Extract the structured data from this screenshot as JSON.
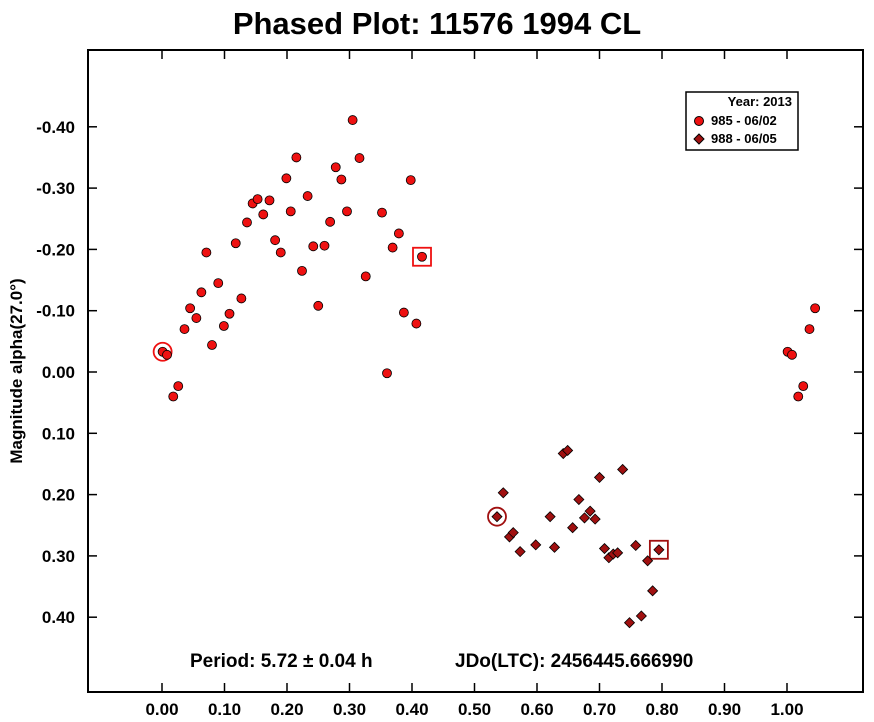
{
  "chart_data": {
    "type": "scatter",
    "title": "Phased Plot: 11576 1994 CL",
    "xlabel": "",
    "ylabel": "Magnitude alpha(27.0°)",
    "xlim": [
      -0.12,
      1.11
    ],
    "ylim": [
      0.52,
      -0.52
    ],
    "y_inverted": true,
    "grid": false,
    "legend_position": "top-right",
    "legend_title": "Year: 2013",
    "x_ticks": [
      0.0,
      0.1,
      0.2,
      0.3,
      0.4,
      0.5,
      0.6,
      0.7,
      0.8,
      0.9,
      1.0
    ],
    "x_tick_labels": [
      "0.00",
      "0.10",
      "0.20",
      "0.30",
      "0.40",
      "0.50",
      "0.60",
      "0.70",
      "0.80",
      "0.90",
      "1.00"
    ],
    "y_ticks": [
      -0.4,
      -0.3,
      -0.2,
      -0.1,
      0.0,
      0.1,
      0.2,
      0.3,
      0.4
    ],
    "y_tick_labels": [
      "-0.40",
      "-0.30",
      "-0.20",
      "-0.10",
      "0.00",
      "0.10",
      "0.20",
      "0.30",
      "0.40"
    ],
    "annotations": {
      "period": "Period: 5.72 ± 0.04 h",
      "jdo": "JDo(LTC): 2456445.666990"
    },
    "series": [
      {
        "name": "985 - 06/02",
        "marker": "circle",
        "color": "#ee1111",
        "start_marker": {
          "x": 0.001,
          "y": -0.033
        },
        "end_marker": {
          "x": 0.416,
          "y": -0.188
        },
        "points": [
          [
            0.001,
            -0.033
          ],
          [
            0.008,
            -0.028
          ],
          [
            0.018,
            0.04
          ],
          [
            0.026,
            0.023
          ],
          [
            0.036,
            -0.07
          ],
          [
            0.045,
            -0.104
          ],
          [
            0.055,
            -0.088
          ],
          [
            0.063,
            -0.13
          ],
          [
            0.071,
            -0.195
          ],
          [
            0.08,
            -0.044
          ],
          [
            0.09,
            -0.145
          ],
          [
            0.099,
            -0.075
          ],
          [
            0.108,
            -0.095
          ],
          [
            0.118,
            -0.21
          ],
          [
            0.127,
            -0.12
          ],
          [
            0.136,
            -0.244
          ],
          [
            0.145,
            -0.275
          ],
          [
            0.153,
            -0.282
          ],
          [
            0.162,
            -0.257
          ],
          [
            0.172,
            -0.28
          ],
          [
            0.181,
            -0.215
          ],
          [
            0.19,
            -0.195
          ],
          [
            0.199,
            -0.316
          ],
          [
            0.206,
            -0.262
          ],
          [
            0.215,
            -0.35
          ],
          [
            0.224,
            -0.165
          ],
          [
            0.233,
            -0.287
          ],
          [
            0.242,
            -0.205
          ],
          [
            0.25,
            -0.108
          ],
          [
            0.26,
            -0.206
          ],
          [
            0.269,
            -0.245
          ],
          [
            0.278,
            -0.334
          ],
          [
            0.287,
            -0.314
          ],
          [
            0.296,
            -0.262
          ],
          [
            0.305,
            -0.411
          ],
          [
            0.316,
            -0.349
          ],
          [
            0.326,
            -0.156
          ],
          [
            0.352,
            -0.26
          ],
          [
            0.36,
            0.002
          ],
          [
            0.369,
            -0.203
          ],
          [
            0.379,
            -0.226
          ],
          [
            0.387,
            -0.097
          ],
          [
            0.398,
            -0.313
          ],
          [
            0.407,
            -0.079
          ],
          [
            0.416,
            -0.188
          ],
          [
            1.001,
            -0.033
          ],
          [
            1.008,
            -0.028
          ],
          [
            1.018,
            0.04
          ],
          [
            1.026,
            0.023
          ],
          [
            1.036,
            -0.07
          ],
          [
            1.045,
            -0.104
          ]
        ]
      },
      {
        "name": "988 - 06/05",
        "marker": "diamond",
        "color": "#a01010",
        "start_marker": {
          "x": 0.536,
          "y": 0.236
        },
        "end_marker": {
          "x": 0.795,
          "y": 0.29
        },
        "points": [
          [
            0.536,
            0.236
          ],
          [
            0.546,
            0.197
          ],
          [
            0.556,
            0.269
          ],
          [
            0.562,
            0.262
          ],
          [
            0.573,
            0.293
          ],
          [
            0.598,
            0.282
          ],
          [
            0.621,
            0.236
          ],
          [
            0.628,
            0.286
          ],
          [
            0.642,
            0.133
          ],
          [
            0.649,
            0.128
          ],
          [
            0.657,
            0.254
          ],
          [
            0.667,
            0.208
          ],
          [
            0.676,
            0.238
          ],
          [
            0.685,
            0.227
          ],
          [
            0.693,
            0.24
          ],
          [
            0.7,
            0.172
          ],
          [
            0.708,
            0.288
          ],
          [
            0.715,
            0.303
          ],
          [
            0.722,
            0.297
          ],
          [
            0.729,
            0.295
          ],
          [
            0.737,
            0.159
          ],
          [
            0.748,
            0.409
          ],
          [
            0.758,
            0.283
          ],
          [
            0.767,
            0.398
          ],
          [
            0.777,
            0.308
          ],
          [
            0.785,
            0.357
          ],
          [
            0.795,
            0.29
          ]
        ]
      }
    ]
  }
}
